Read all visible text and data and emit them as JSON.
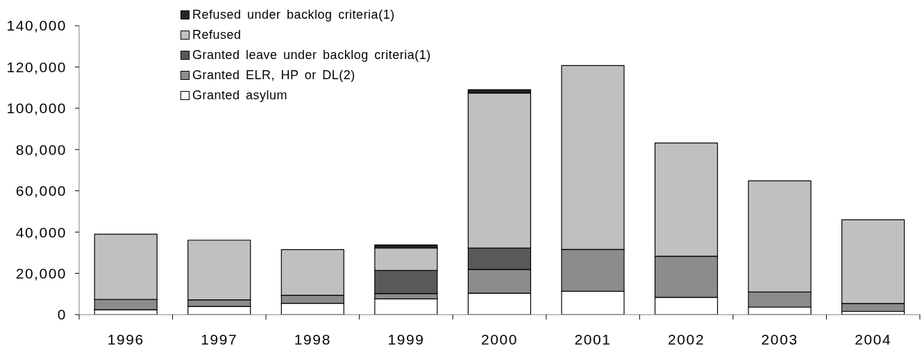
{
  "chart_data": {
    "type": "bar",
    "stacked": true,
    "categories": [
      "1996",
      "1997",
      "1998",
      "1999",
      "2000",
      "2001",
      "2002",
      "2003",
      "2004"
    ],
    "series": [
      {
        "name": "Granted asylum",
        "color": "#ffffff",
        "values": [
          2400,
          4000,
          5500,
          7600,
          10400,
          11300,
          8400,
          3700,
          1600
        ]
      },
      {
        "name": "Granted ELR, HP or DL(2)",
        "color": "#8c8c8c",
        "values": [
          5000,
          3200,
          3900,
          2600,
          11500,
          20300,
          19900,
          7300,
          3800
        ]
      },
      {
        "name": "Granted leave under backlog criteria(1)",
        "color": "#595959",
        "values": [
          null,
          null,
          null,
          11200,
          10400,
          null,
          null,
          null,
          null
        ]
      },
      {
        "name": "Refused",
        "color": "#c0c0c0",
        "values": [
          31600,
          28900,
          22100,
          10900,
          75100,
          89100,
          54900,
          53800,
          40600
        ]
      },
      {
        "name": "Refused under backlog criteria(1)",
        "color": "#262626",
        "values": [
          null,
          null,
          null,
          1500,
          1600,
          null,
          null,
          null,
          null
        ]
      }
    ],
    "ylim": [
      0,
      140000
    ],
    "yticks": [
      {
        "value": 0,
        "label": "0"
      },
      {
        "value": 20000,
        "label": "20,000"
      },
      {
        "value": 40000,
        "label": "40,000"
      },
      {
        "value": 60000,
        "label": "60,000"
      },
      {
        "value": 80000,
        "label": "80,000"
      },
      {
        "value": 100000,
        "label": "100,000"
      },
      {
        "value": 120000,
        "label": "120,000"
      },
      {
        "value": 140000,
        "label": "140,000"
      }
    ],
    "grid": false,
    "legend": "top left"
  }
}
